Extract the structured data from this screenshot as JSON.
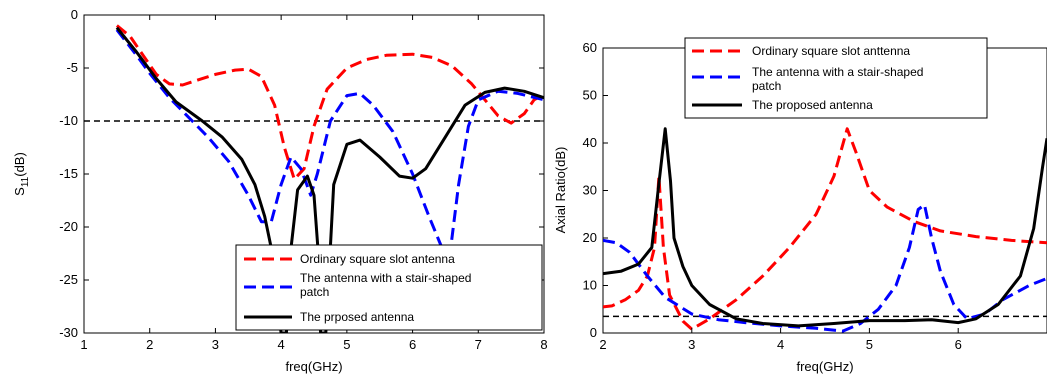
{
  "chart_data": [
    {
      "type": "line",
      "xlabel": "freq(GHz)",
      "ylabel_main": "S",
      "ylabel_sub": "11",
      "ylabel_unit": "(dB)",
      "xlim": [
        1,
        8
      ],
      "ylim": [
        -30,
        0
      ],
      "xticks": [
        "1",
        "2",
        "3",
        "4",
        "5",
        "6",
        "7",
        "8"
      ],
      "yticks": [
        "0",
        "-5",
        "-10",
        "-15",
        "-20",
        "-25",
        "-30"
      ],
      "reference_line": -10,
      "legend_position": "bottom-right",
      "series": [
        {
          "name": "Ordinary square slot antenna",
          "color": "#ff0000",
          "dash": "dashed",
          "points": [
            [
              1.5,
              -1
            ],
            [
              1.7,
              -2
            ],
            [
              1.9,
              -3.8
            ],
            [
              2.1,
              -5.6
            ],
            [
              2.3,
              -6.5
            ],
            [
              2.5,
              -6.6
            ],
            [
              2.7,
              -6.2
            ],
            [
              3.0,
              -5.6
            ],
            [
              3.3,
              -5.2
            ],
            [
              3.5,
              -5.1
            ],
            [
              3.7,
              -5.8
            ],
            [
              3.9,
              -8.5
            ],
            [
              4.05,
              -12.5
            ],
            [
              4.2,
              -15.5
            ],
            [
              4.35,
              -14.5
            ],
            [
              4.5,
              -10.5
            ],
            [
              4.7,
              -7
            ],
            [
              5.0,
              -5
            ],
            [
              5.3,
              -4.2
            ],
            [
              5.6,
              -3.8
            ],
            [
              6.0,
              -3.7
            ],
            [
              6.3,
              -4.0
            ],
            [
              6.6,
              -4.8
            ],
            [
              6.9,
              -6.5
            ],
            [
              7.1,
              -8
            ],
            [
              7.3,
              -9.5
            ],
            [
              7.5,
              -10.2
            ],
            [
              7.7,
              -9.3
            ],
            [
              7.85,
              -8
            ],
            [
              8.0,
              -7.5
            ]
          ]
        },
        {
          "name": "The antenna with a stair-shaped patch",
          "color": "#0000ff",
          "dash": "dashed",
          "points": [
            [
              1.5,
              -1.4
            ],
            [
              1.8,
              -3.8
            ],
            [
              2.0,
              -5.5
            ],
            [
              2.3,
              -7.8
            ],
            [
              2.6,
              -9.7
            ],
            [
              2.9,
              -11.6
            ],
            [
              3.2,
              -13.8
            ],
            [
              3.5,
              -17
            ],
            [
              3.7,
              -19.5
            ],
            [
              3.85,
              -19.5
            ],
            [
              4.0,
              -16
            ],
            [
              4.15,
              -13.4
            ],
            [
              4.3,
              -14.5
            ],
            [
              4.45,
              -17
            ],
            [
              4.55,
              -15
            ],
            [
              4.75,
              -10
            ],
            [
              5.0,
              -7.6
            ],
            [
              5.2,
              -7.4
            ],
            [
              5.4,
              -8.5
            ],
            [
              5.7,
              -11
            ],
            [
              6.0,
              -15
            ],
            [
              6.25,
              -19
            ],
            [
              6.45,
              -22
            ],
            [
              6.55,
              -23.5
            ],
            [
              6.7,
              -16
            ],
            [
              6.85,
              -10.5
            ],
            [
              7.0,
              -8
            ],
            [
              7.3,
              -7.2
            ],
            [
              7.6,
              -7.4
            ],
            [
              8.0,
              -8
            ]
          ]
        },
        {
          "name": "The prposed antenna",
          "color": "#000000",
          "dash": "solid",
          "points": [
            [
              1.5,
              -1.2
            ],
            [
              1.8,
              -3.5
            ],
            [
              2.1,
              -6
            ],
            [
              2.4,
              -8.2
            ],
            [
              2.8,
              -10
            ],
            [
              3.1,
              -11.5
            ],
            [
              3.4,
              -13.6
            ],
            [
              3.6,
              -16
            ],
            [
              3.75,
              -19
            ],
            [
              3.85,
              -22
            ],
            [
              3.92,
              -26
            ],
            [
              4.0,
              -30
            ],
            [
              4.08,
              -30
            ],
            [
              4.15,
              -22
            ],
            [
              4.25,
              -16.5
            ],
            [
              4.4,
              -15.2
            ],
            [
              4.5,
              -17
            ],
            [
              4.56,
              -22
            ],
            [
              4.6,
              -30
            ],
            [
              4.68,
              -30
            ],
            [
              4.8,
              -16
            ],
            [
              5.0,
              -12.2
            ],
            [
              5.2,
              -11.8
            ],
            [
              5.5,
              -13.4
            ],
            [
              5.8,
              -15.2
            ],
            [
              6.0,
              -15.4
            ],
            [
              6.2,
              -14.5
            ],
            [
              6.5,
              -11.5
            ],
            [
              6.8,
              -8.5
            ],
            [
              7.1,
              -7.3
            ],
            [
              7.4,
              -6.9
            ],
            [
              7.7,
              -7.2
            ],
            [
              8.0,
              -7.8
            ]
          ]
        }
      ]
    },
    {
      "type": "line",
      "xlabel": "freq(GHz)",
      "ylabel": "Axial Ratio(dB)",
      "xlim": [
        2,
        7
      ],
      "ylim": [
        0,
        60
      ],
      "xticks": [
        "2",
        "3",
        "4",
        "5",
        "6"
      ],
      "yticks": [
        "60",
        "50",
        "40",
        "30",
        "20",
        "10",
        "0"
      ],
      "reference_line": 3.5,
      "legend_position": "top-center",
      "series": [
        {
          "name": "Ordinary square slot anttenna",
          "color": "#ff0000",
          "dash": "dashed",
          "points": [
            [
              2.0,
              5.5
            ],
            [
              2.1,
              5.7
            ],
            [
              2.25,
              7
            ],
            [
              2.4,
              9
            ],
            [
              2.5,
              12
            ],
            [
              2.58,
              18
            ],
            [
              2.63,
              33
            ],
            [
              2.68,
              18
            ],
            [
              2.75,
              8
            ],
            [
              2.9,
              2.5
            ],
            [
              3.0,
              0.8
            ],
            [
              3.2,
              3
            ],
            [
              3.5,
              7
            ],
            [
              3.8,
              12
            ],
            [
              4.1,
              18
            ],
            [
              4.4,
              25
            ],
            [
              4.6,
              33
            ],
            [
              4.75,
              43
            ],
            [
              4.85,
              38
            ],
            [
              5.0,
              30
            ],
            [
              5.2,
              26.5
            ],
            [
              5.5,
              23.5
            ],
            [
              5.8,
              21.5
            ],
            [
              6.2,
              20.3
            ],
            [
              6.6,
              19.5
            ],
            [
              7.0,
              19
            ]
          ]
        },
        {
          "name": "The antenna with a stair-shaped patch",
          "color": "#0000ff",
          "dash": "dashed",
          "points": [
            [
              2.0,
              19.5
            ],
            [
              2.15,
              19
            ],
            [
              2.3,
              17
            ],
            [
              2.5,
              12
            ],
            [
              2.7,
              7.5
            ],
            [
              3.0,
              4
            ],
            [
              3.3,
              2.8
            ],
            [
              3.6,
              2.2
            ],
            [
              4.0,
              1.5
            ],
            [
              4.4,
              1
            ],
            [
              4.7,
              0.4
            ],
            [
              4.9,
              2
            ],
            [
              5.1,
              5
            ],
            [
              5.3,
              10
            ],
            [
              5.45,
              18
            ],
            [
              5.55,
              26
            ],
            [
              5.62,
              27
            ],
            [
              5.7,
              20
            ],
            [
              5.8,
              13
            ],
            [
              5.95,
              6
            ],
            [
              6.1,
              3
            ],
            [
              6.3,
              4
            ],
            [
              6.5,
              7
            ],
            [
              6.8,
              10
            ],
            [
              7.0,
              11.5
            ]
          ]
        },
        {
          "name": "The proposed antenna",
          "color": "#000000",
          "dash": "solid",
          "points": [
            [
              2.0,
              12.5
            ],
            [
              2.2,
              13
            ],
            [
              2.4,
              14.5
            ],
            [
              2.55,
              18
            ],
            [
              2.62,
              30
            ],
            [
              2.7,
              43
            ],
            [
              2.76,
              32
            ],
            [
              2.8,
              20
            ],
            [
              2.9,
              14
            ],
            [
              3.0,
              10
            ],
            [
              3.2,
              6
            ],
            [
              3.5,
              3
            ],
            [
              3.8,
              2
            ],
            [
              4.2,
              1.5
            ],
            [
              4.6,
              2
            ],
            [
              5.0,
              2.6
            ],
            [
              5.4,
              2.6
            ],
            [
              5.7,
              2.8
            ],
            [
              6.0,
              2.2
            ],
            [
              6.2,
              3
            ],
            [
              6.45,
              6
            ],
            [
              6.7,
              12
            ],
            [
              6.85,
              22
            ],
            [
              6.95,
              35
            ],
            [
              7.0,
              41
            ]
          ]
        }
      ]
    }
  ]
}
